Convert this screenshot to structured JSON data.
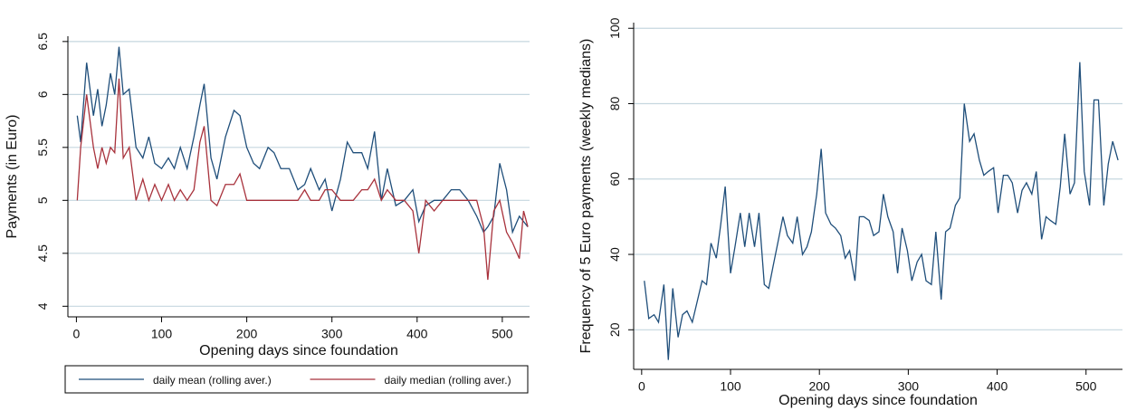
{
  "chart_data": [
    {
      "type": "line",
      "x_label": "Opening days since foundation",
      "y_label": "Payments (in Euro)",
      "x": [
        1,
        5,
        12,
        20,
        25,
        30,
        35,
        40,
        45,
        50,
        55,
        62,
        70,
        78,
        85,
        92,
        100,
        108,
        115,
        122,
        130,
        138,
        145,
        150,
        158,
        165,
        175,
        185,
        192,
        200,
        208,
        215,
        225,
        232,
        240,
        250,
        260,
        268,
        275,
        285,
        292,
        300,
        310,
        318,
        325,
        335,
        342,
        350,
        358,
        365,
        375,
        385,
        395,
        402,
        410,
        420,
        430,
        440,
        450,
        460,
        470,
        478,
        483,
        490,
        497,
        505,
        512,
        520,
        525,
        530
      ],
      "series": [
        {
          "name": "daily mean (rolling aver.)",
          "color": "#1f4e7a",
          "values": [
            5.8,
            5.55,
            6.3,
            5.8,
            6.05,
            5.7,
            5.9,
            6.2,
            6.0,
            6.45,
            6.0,
            6.05,
            5.5,
            5.4,
            5.6,
            5.35,
            5.3,
            5.4,
            5.3,
            5.5,
            5.3,
            5.6,
            5.9,
            6.1,
            5.4,
            5.2,
            5.6,
            5.85,
            5.8,
            5.5,
            5.35,
            5.3,
            5.5,
            5.45,
            5.3,
            5.3,
            5.1,
            5.15,
            5.3,
            5.1,
            5.2,
            4.9,
            5.2,
            5.55,
            5.45,
            5.45,
            5.3,
            5.65,
            5.0,
            5.3,
            4.95,
            5.0,
            5.1,
            4.8,
            4.95,
            5.0,
            5.0,
            5.1,
            5.1,
            5.0,
            4.85,
            4.7,
            4.75,
            4.85,
            5.35,
            5.1,
            4.7,
            4.85,
            4.8,
            4.75
          ]
        },
        {
          "name": "daily median (rolling aver.)",
          "color": "#a8323c",
          "values": [
            5.0,
            5.5,
            6.0,
            5.5,
            5.3,
            5.5,
            5.35,
            5.5,
            5.45,
            6.15,
            5.4,
            5.5,
            5.0,
            5.2,
            5.0,
            5.15,
            5.0,
            5.15,
            5.0,
            5.1,
            5.0,
            5.1,
            5.55,
            5.7,
            5.0,
            4.95,
            5.15,
            5.15,
            5.25,
            5.0,
            5.0,
            5.0,
            5.0,
            5.0,
            5.0,
            5.0,
            5.0,
            5.1,
            5.0,
            5.0,
            5.1,
            5.1,
            5.0,
            5.0,
            5.0,
            5.1,
            5.1,
            5.2,
            5.0,
            5.1,
            5.0,
            5.0,
            4.9,
            4.5,
            5.0,
            4.9,
            5.0,
            5.0,
            5.0,
            5.0,
            5.0,
            4.75,
            4.25,
            4.9,
            5.0,
            4.7,
            4.6,
            4.45,
            4.9,
            4.75
          ]
        }
      ],
      "xlim": [
        -10,
        532
      ],
      "xticks": [
        0,
        100,
        200,
        300,
        400,
        500
      ],
      "ylim": [
        3.9,
        6.55
      ],
      "yticks": [
        4,
        4.5,
        5,
        5.5,
        6,
        6.5
      ],
      "grid": true,
      "legend": "bottom"
    },
    {
      "type": "line",
      "x_label": "Opening days since foundation",
      "y_label": "Frequency of 5 Euro payments (weekly medians)",
      "x": [
        3,
        8,
        14,
        19,
        25,
        30,
        35,
        41,
        46,
        51,
        57,
        62,
        68,
        73,
        78,
        84,
        89,
        94,
        100,
        105,
        111,
        116,
        121,
        127,
        132,
        138,
        143,
        148,
        154,
        159,
        164,
        170,
        175,
        181,
        186,
        191,
        197,
        202,
        207,
        213,
        218,
        224,
        229,
        234,
        240,
        245,
        250,
        256,
        261,
        267,
        272,
        277,
        283,
        288,
        293,
        299,
        304,
        310,
        315,
        320,
        326,
        331,
        337,
        342,
        347,
        353,
        358,
        363,
        369,
        374,
        380,
        385,
        390,
        396,
        401,
        407,
        412,
        417,
        423,
        428,
        433,
        439,
        444,
        450,
        455,
        460,
        466,
        471,
        476,
        482,
        487,
        493,
        498,
        504,
        509,
        514,
        520,
        525,
        530,
        536
      ],
      "series": [
        {
          "color": "#1f4e7a",
          "values": [
            33,
            23,
            24,
            22,
            32,
            12,
            31,
            18,
            24,
            25,
            22,
            27,
            33,
            32,
            43,
            39,
            48,
            58,
            35,
            42,
            51,
            42,
            51,
            42,
            51,
            32,
            31,
            37,
            44,
            50,
            45,
            43,
            50,
            40,
            42,
            46,
            56,
            68,
            51,
            48,
            47,
            45,
            39,
            41,
            33,
            50,
            50,
            49,
            45,
            46,
            56,
            50,
            46,
            35,
            47,
            41,
            33,
            38,
            40,
            33,
            32,
            46,
            28,
            46,
            47,
            53,
            55,
            80,
            70,
            72,
            65,
            61,
            62,
            63,
            51,
            61,
            61,
            59,
            51,
            57,
            59,
            56,
            62,
            44,
            50,
            49,
            48,
            58,
            72,
            56,
            59,
            91,
            62,
            53,
            81,
            81,
            53,
            64,
            70,
            65
          ]
        }
      ],
      "xlim": [
        -9,
        541
      ],
      "xticks": [
        0,
        100,
        200,
        300,
        400,
        500
      ],
      "ylim": [
        9.5,
        101.5
      ],
      "yticks": [
        20,
        40,
        60,
        80,
        100
      ],
      "grid": true
    }
  ]
}
